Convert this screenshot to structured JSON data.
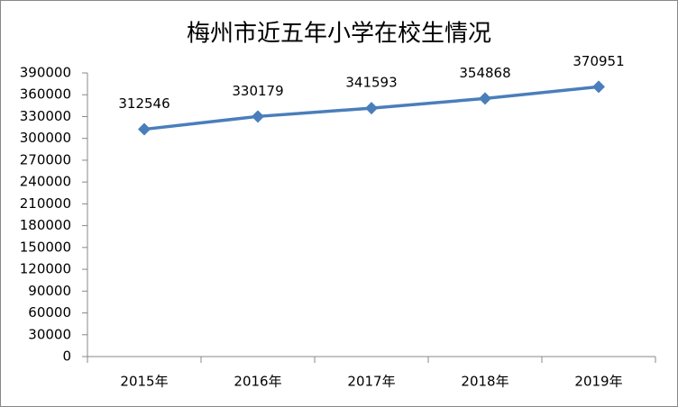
{
  "chart_data": {
    "type": "line",
    "title": "梅州市近五年小学在校生情况",
    "categories": [
      "2015年",
      "2016年",
      "2017年",
      "2018年",
      "2019年"
    ],
    "series": [
      {
        "color": "#4a7ebb",
        "values": [
          312546,
          330179,
          341593,
          354868,
          370951
        ]
      }
    ],
    "ylim": [
      0,
      390000
    ],
    "yticks": [
      0,
      30000,
      60000,
      90000,
      120000,
      150000,
      180000,
      210000,
      240000,
      270000,
      300000,
      330000,
      360000,
      390000
    ],
    "grid": false
  }
}
